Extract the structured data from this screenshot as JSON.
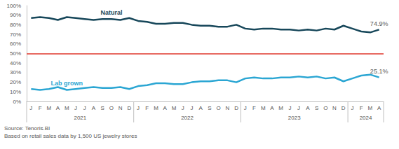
{
  "chart_data": {
    "type": "line",
    "categories": [
      "J",
      "F",
      "M",
      "A",
      "M",
      "J",
      "J",
      "A",
      "S",
      "O",
      "N",
      "D",
      "J",
      "F",
      "M",
      "A",
      "M",
      "J",
      "J",
      "A",
      "S",
      "O",
      "N",
      "D",
      "J",
      "F",
      "M",
      "A",
      "M",
      "J",
      "J",
      "A",
      "S",
      "O",
      "N",
      "D",
      "J",
      "F",
      "M",
      "A"
    ],
    "year_labels": [
      "2021",
      "2022",
      "2023",
      "2024"
    ],
    "series": [
      {
        "name": "Natural",
        "color": "#17475a",
        "values": [
          87,
          88,
          87,
          85,
          88,
          87,
          86,
          85,
          86,
          86,
          85,
          87,
          84,
          83,
          81,
          81,
          82,
          82,
          80,
          79,
          79,
          78,
          78,
          80,
          76,
          75,
          76,
          76,
          75,
          75,
          74,
          75,
          74,
          76,
          75,
          79,
          76,
          73,
          72,
          74.9
        ],
        "value_labels": [
          null,
          null,
          null,
          null,
          null,
          null,
          null,
          null,
          null,
          null,
          null,
          null,
          null,
          null,
          null,
          null,
          null,
          null,
          null,
          null,
          null,
          null,
          null,
          null,
          null,
          null,
          null,
          null,
          null,
          null,
          null,
          null,
          null,
          null,
          null,
          null,
          null,
          null,
          null,
          "74.9%"
        ]
      },
      {
        "name": "Lab grown",
        "color": "#2ba6d3",
        "values": [
          13,
          12,
          13,
          15,
          12,
          13,
          14,
          15,
          14,
          14,
          15,
          13,
          16,
          17,
          19,
          19,
          18,
          18,
          20,
          21,
          21,
          22,
          22,
          20,
          24,
          25,
          24,
          24,
          25,
          25,
          26,
          25,
          26,
          24,
          25,
          21,
          24,
          27,
          28,
          25.1
        ],
        "value_labels": [
          null,
          null,
          null,
          null,
          null,
          null,
          null,
          null,
          null,
          null,
          null,
          null,
          null,
          null,
          null,
          null,
          null,
          null,
          null,
          null,
          null,
          null,
          null,
          null,
          null,
          null,
          null,
          null,
          null,
          null,
          null,
          null,
          null,
          null,
          null,
          null,
          null,
          null,
          null,
          "25.1%"
        ]
      }
    ],
    "hline": {
      "value": 50,
      "color": "#e0382e"
    },
    "ylim": [
      0,
      100
    ],
    "yticks": [
      {
        "value": 0,
        "label": "0%"
      },
      {
        "value": 10,
        "label": "10%"
      },
      {
        "value": 20,
        "label": "20%"
      },
      {
        "value": 30,
        "label": "30%"
      },
      {
        "value": 40,
        "label": "40%"
      },
      {
        "value": 50,
        "label": "50%"
      },
      {
        "value": 60,
        "label": "60%"
      },
      {
        "value": 70,
        "label": "70%"
      },
      {
        "value": 80,
        "label": "80%"
      },
      {
        "value": 90,
        "label": "90%"
      },
      {
        "value": 100,
        "label": "100%"
      }
    ],
    "grid": false,
    "source": "Source: Tenoris.BI",
    "note": "Based on retail sales data by 1,500 US jewelry stores"
  }
}
